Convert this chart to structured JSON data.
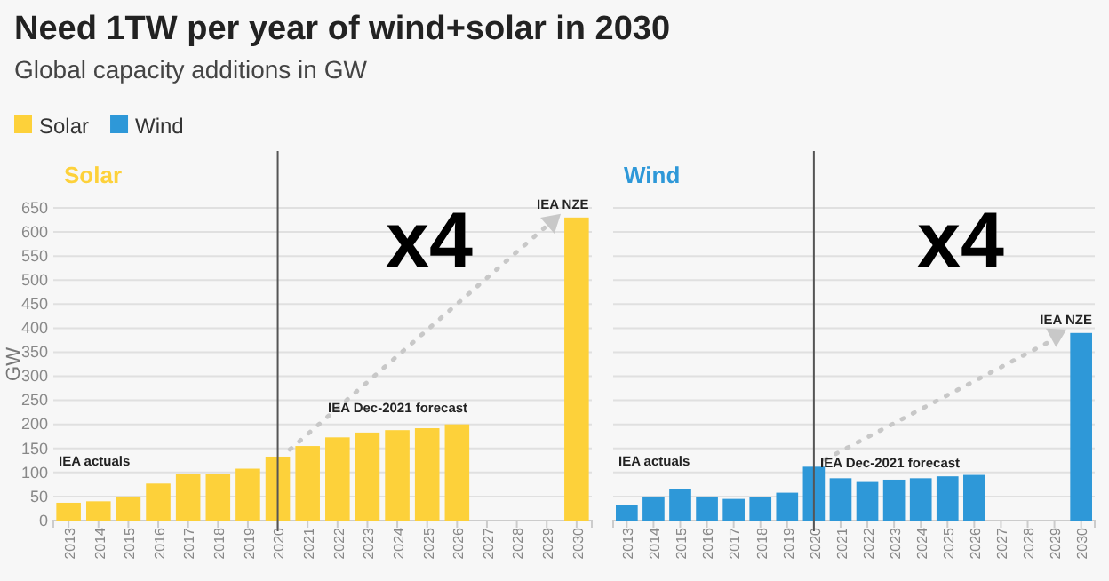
{
  "chart_data": [
    {
      "type": "bar",
      "title": "Need 1TW per year of wind+solar in 2030",
      "subtitle": "Global capacity additions in GW",
      "ylabel": "GW",
      "categories": [
        "2013",
        "2014",
        "2015",
        "2016",
        "2017",
        "2018",
        "2019",
        "2020",
        "2021",
        "2022",
        "2023",
        "2024",
        "2025",
        "2026",
        "2027",
        "2028",
        "2029",
        "2030"
      ],
      "series": [
        {
          "name": "Solar",
          "color": "#fdd13a",
          "values": [
            37,
            40,
            50,
            77,
            97,
            97,
            108,
            133,
            155,
            173,
            183,
            188,
            192,
            200,
            null,
            null,
            null,
            630
          ]
        }
      ],
      "ylim": [
        0,
        650
      ],
      "yticks": [
        0,
        50,
        100,
        150,
        200,
        250,
        300,
        350,
        400,
        450,
        500,
        550,
        600,
        650
      ],
      "grid": "y",
      "legend": "top left",
      "ref_lines": [
        {
          "axis": "x",
          "value": "2020",
          "color": "#555555"
        }
      ],
      "annotations": [
        "x4",
        "IEA actuals",
        "IEA Dec-2021 forecast",
        {
          "text": "IEA NZE",
          "x": "2030",
          "y": 630
        }
      ]
    },
    {
      "type": "bar",
      "categories": [
        "2013",
        "2014",
        "2015",
        "2016",
        "2017",
        "2018",
        "2019",
        "2020",
        "2021",
        "2022",
        "2023",
        "2024",
        "2025",
        "2026",
        "2027",
        "2028",
        "2029",
        "2030"
      ],
      "series": [
        {
          "name": "Wind",
          "color": "#2e98d8",
          "values": [
            32,
            50,
            65,
            50,
            45,
            48,
            58,
            112,
            88,
            82,
            85,
            88,
            92,
            95,
            null,
            null,
            null,
            390
          ]
        }
      ],
      "ylim": [
        0,
        650
      ],
      "yticks": [
        0,
        50,
        100,
        150,
        200,
        250,
        300,
        350,
        400,
        450,
        500,
        550,
        600,
        650
      ],
      "grid": "y",
      "legend": "top left",
      "tick_labels": "x",
      "ref_lines": [
        {
          "axis": "x",
          "value": "2020",
          "color": "#555555"
        }
      ],
      "annotations": [
        "x4",
        "IEA actuals",
        "IEA Dec-2021 forecast",
        {
          "text": "IEA NZE",
          "x": "2030",
          "y": 390
        }
      ]
    }
  ]
}
